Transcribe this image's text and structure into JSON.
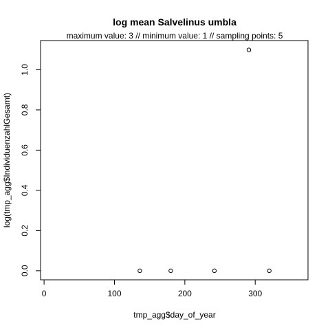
{
  "chart_data": {
    "type": "scatter",
    "title": "log mean Salvelinus umbla",
    "subtitle": "maximum value: 3  //  minimum value: 1  // sampling points: 5",
    "xlabel": "tmp_agg$day_of_year",
    "ylabel": "log(tmp_agg$IndividuenzahlGesamt)",
    "xlim": [
      -5,
      375
    ],
    "ylim": [
      -0.045,
      1.145
    ],
    "xticks": [
      0,
      100,
      200,
      300
    ],
    "xtick_labels": [
      "0",
      "100",
      "200",
      "300"
    ],
    "yticks": [
      0.0,
      0.2,
      0.4,
      0.6,
      0.8,
      1.0
    ],
    "ytick_labels": [
      "0.0",
      "0.2",
      "0.4",
      "0.6",
      "0.8",
      "1.0"
    ],
    "grid": false,
    "marker": "open-circle",
    "colors": {
      "points": "#000000",
      "axes": "#000000",
      "background": "#ffffff"
    },
    "points": [
      {
        "x": 136,
        "y": 0.0
      },
      {
        "x": 180,
        "y": 0.0
      },
      {
        "x": 242,
        "y": 0.0
      },
      {
        "x": 291,
        "y": 1.0986
      },
      {
        "x": 320,
        "y": 0.0
      }
    ]
  }
}
